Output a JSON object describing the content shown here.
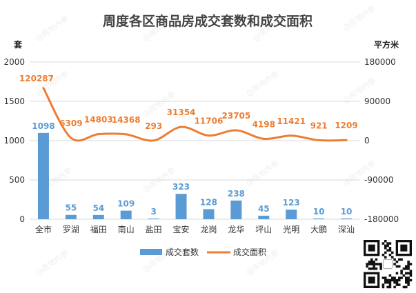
{
  "chart_data": {
    "type": "bar",
    "title": "周度各区商品房成交套数和成交面积",
    "y_left_unit": "套",
    "y_right_unit": "平方米",
    "categories": [
      "全市",
      "罗湖",
      "福田",
      "南山",
      "盐田",
      "宝安",
      "龙岗",
      "龙华",
      "坪山",
      "光明",
      "大鹏",
      "深汕"
    ],
    "series": [
      {
        "name": "成交套数",
        "type": "bar",
        "axis": "left",
        "color": "#5b9bd5",
        "values": [
          1098,
          55,
          54,
          109,
          3,
          323,
          128,
          238,
          45,
          123,
          10,
          10
        ]
      },
      {
        "name": "成交面积",
        "type": "line",
        "axis": "right",
        "color": "#ed7d31",
        "values": [
          120287,
          6309,
          14803,
          14368,
          293,
          31354,
          11706,
          23705,
          4198,
          11421,
          921,
          1209
        ]
      }
    ],
    "ylim_left": [
      0,
      2000
    ],
    "yticks_left": [
      "0",
      "500",
      "1000",
      "1500",
      "2000"
    ],
    "ylim_right": [
      -180000,
      180000
    ],
    "yticks_right": [
      "-180000",
      "-90000",
      "0",
      "90000",
      "180000"
    ],
    "grid": true,
    "legend": "bottom",
    "watermark": "@房地内参"
  }
}
